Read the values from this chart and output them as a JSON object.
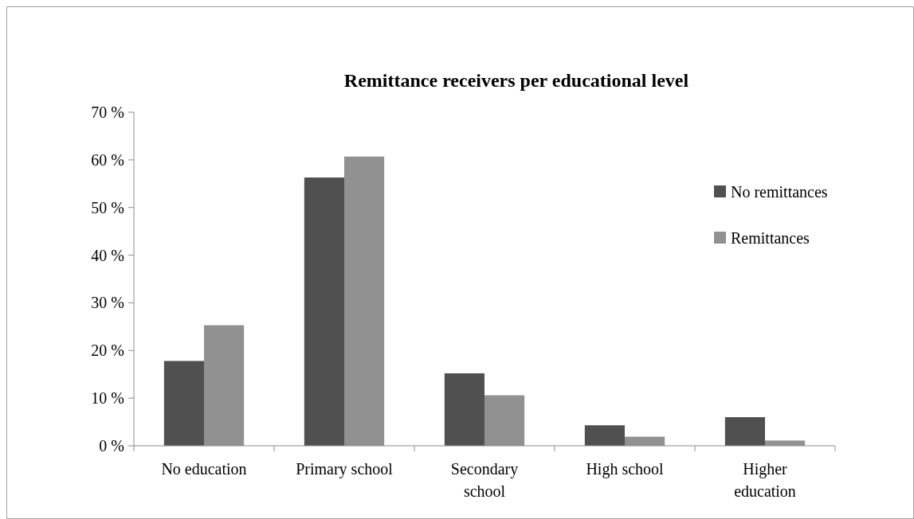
{
  "chart_data": {
    "type": "bar",
    "title": "Remittance receivers per educational level",
    "categories": [
      "No education",
      "Primary school",
      "Secondary school",
      "High school",
      "Higher education"
    ],
    "series": [
      {
        "name": "No remittances",
        "color": "#505050",
        "values": [
          17.8,
          56.3,
          15.2,
          4.3,
          6.0
        ]
      },
      {
        "name": "Remittances",
        "color": "#919191",
        "values": [
          25.3,
          60.7,
          10.6,
          1.9,
          1.1
        ]
      }
    ],
    "ylim": [
      0,
      70
    ],
    "yticks": [
      {
        "value": 0,
        "label": "0 %"
      },
      {
        "value": 10,
        "label": "10 %"
      },
      {
        "value": 20,
        "label": "20 %"
      },
      {
        "value": 30,
        "label": "30 %"
      },
      {
        "value": 40,
        "label": "40 %"
      },
      {
        "value": 50,
        "label": "50 %"
      },
      {
        "value": 60,
        "label": "60 %"
      },
      {
        "value": 70,
        "label": "70 %"
      }
    ],
    "grid": false,
    "legend": "right"
  }
}
